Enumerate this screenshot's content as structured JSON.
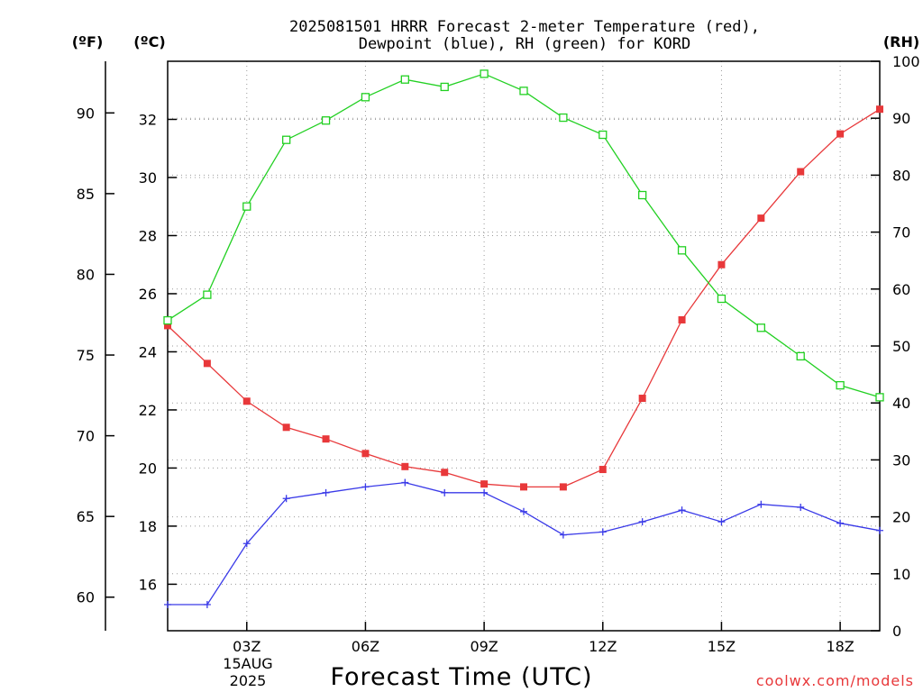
{
  "chart_data": {
    "type": "line",
    "title_lines": [
      "2025081501 HRRR Forecast 2-meter Temperature (red),",
      "Dewpoint (blue), RH (green) for KORD"
    ],
    "units": {
      "f": "(ºF)",
      "c": "(ºC)",
      "rh": "(RH)"
    },
    "xlabel": "Forecast Time (UTC)",
    "credit": "coolwx.com/models",
    "date_label": [
      "15AUG",
      "2025"
    ],
    "x_hours": [
      1,
      2,
      3,
      4,
      5,
      6,
      7,
      8,
      9,
      10,
      11,
      12,
      13,
      14,
      15,
      16,
      17,
      18,
      19
    ],
    "xlim": [
      1,
      19
    ],
    "x_ticks": [
      {
        "hour": 3,
        "label": "03Z"
      },
      {
        "hour": 6,
        "label": "06Z"
      },
      {
        "hour": 9,
        "label": "09Z"
      },
      {
        "hour": 12,
        "label": "12Z"
      },
      {
        "hour": 15,
        "label": "15Z"
      },
      {
        "hour": 18,
        "label": "18Z"
      }
    ],
    "c_axis": {
      "ylim": [
        14.4,
        34.0
      ],
      "ticks": [
        "16",
        "18",
        "20",
        "22",
        "24",
        "26",
        "28",
        "30",
        "32"
      ]
    },
    "f_axis": {
      "ticks": [
        "60",
        "65",
        "70",
        "75",
        "80",
        "85",
        "90"
      ]
    },
    "rh_axis": {
      "ylim": [
        0,
        100
      ],
      "ticks": [
        "0",
        "10",
        "20",
        "30",
        "40",
        "50",
        "60",
        "70",
        "80",
        "90",
        "100"
      ]
    },
    "grid": true,
    "series": [
      {
        "name": "Temperature",
        "color": "#e8383a",
        "marker": "filled-square",
        "axis": "c",
        "values": [
          24.9,
          23.6,
          22.3,
          21.4,
          21.0,
          20.5,
          20.05,
          19.85,
          19.45,
          19.35,
          19.35,
          19.95,
          22.4,
          25.1,
          27.0,
          28.6,
          30.2,
          31.5,
          32.35
        ]
      },
      {
        "name": "Dewpoint",
        "color": "#3a3ae8",
        "marker": "plus",
        "axis": "c",
        "values": [
          15.3,
          15.3,
          17.4,
          18.95,
          19.15,
          19.35,
          19.5,
          19.15,
          19.15,
          18.5,
          17.7,
          17.8,
          18.15,
          18.55,
          18.15,
          18.75,
          18.65,
          18.1,
          17.85
        ]
      },
      {
        "name": "RH",
        "color": "#22d022",
        "marker": "open-square",
        "axis": "rh",
        "values": [
          54.5,
          59,
          74.5,
          86.2,
          89.6,
          93.7,
          96.8,
          95.5,
          97.8,
          94.8,
          90.1,
          87.1,
          76.5,
          66.8,
          58.3,
          53.2,
          48.2,
          43.1,
          41.0
        ]
      }
    ]
  }
}
